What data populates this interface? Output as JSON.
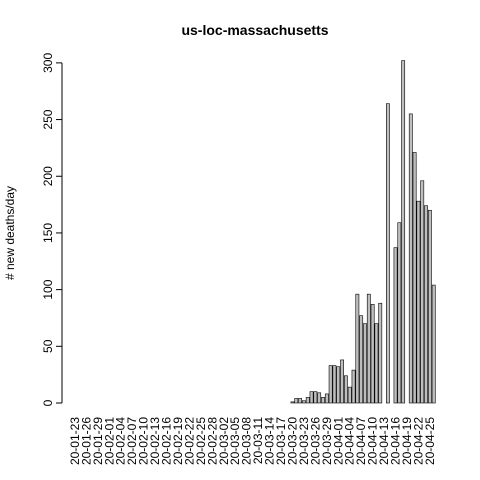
{
  "chart_data": {
    "type": "bar",
    "title": "us-loc-massachusetts",
    "y_label": "# new deaths/day",
    "categories": [
      "20-01-23",
      null,
      null,
      "20-01-26",
      null,
      null,
      "20-01-29",
      null,
      null,
      "20-02-01",
      null,
      null,
      "20-02-04",
      null,
      null,
      "20-02-07",
      null,
      null,
      "20-02-10",
      null,
      null,
      "20-02-13",
      null,
      null,
      "20-02-16",
      null,
      null,
      "20-02-19",
      null,
      null,
      "20-02-22",
      null,
      null,
      "20-02-25",
      null,
      null,
      "20-02-28",
      null,
      null,
      "20-03-02",
      null,
      null,
      "20-03-05",
      null,
      null,
      "20-03-08",
      null,
      null,
      "20-03-11",
      null,
      null,
      "20-03-14",
      null,
      null,
      "20-03-17",
      null,
      null,
      "20-03-20",
      null,
      null,
      "20-03-23",
      null,
      null,
      "20-03-26",
      null,
      null,
      "20-03-29",
      null,
      null,
      "20-04-01",
      null,
      null,
      "20-04-04",
      null,
      null,
      "20-04-07",
      null,
      null,
      "20-04-10",
      null,
      null,
      "20-04-13",
      null,
      null,
      "20-04-16",
      null,
      null,
      "20-04-19",
      null,
      null,
      "20-04-22",
      null,
      null,
      "20-04-25",
      null
    ],
    "values": [
      0,
      0,
      0,
      0,
      0,
      0,
      0,
      0,
      0,
      0,
      0,
      0,
      0,
      0,
      0,
      0,
      0,
      0,
      0,
      0,
      0,
      0,
      0,
      0,
      0,
      0,
      0,
      0,
      0,
      0,
      0,
      0,
      0,
      0,
      0,
      0,
      0,
      0,
      0,
      0,
      0,
      0,
      0,
      0,
      0,
      0,
      0,
      0,
      0,
      0,
      0,
      0,
      0,
      0,
      0,
      0,
      0,
      1,
      4,
      4,
      2,
      5,
      10,
      10,
      9,
      5,
      8,
      33,
      33,
      32,
      38,
      24,
      14,
      29,
      96,
      77,
      70,
      96,
      87,
      70,
      88,
      0,
      264,
      0,
      137,
      159,
      302,
      0,
      255,
      221,
      178,
      196,
      174,
      170,
      104
    ],
    "color": "#bebebe",
    "ylim": [
      0,
      314
    ],
    "yticks": [
      0,
      50,
      100,
      150,
      200,
      250,
      300
    ]
  }
}
